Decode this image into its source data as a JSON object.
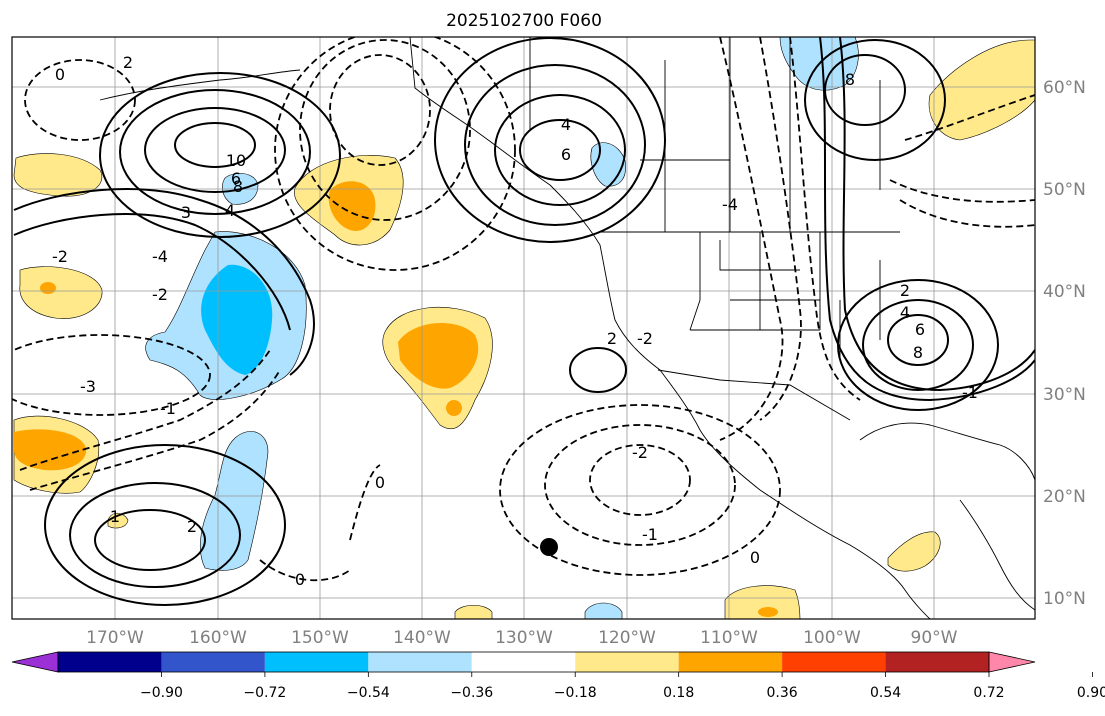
{
  "title": "2025102700 F060",
  "map": {
    "lon_labels": [
      "170°W",
      "160°W",
      "150°W",
      "140°W",
      "130°W",
      "120°W",
      "110°W",
      "100°W",
      "90°W"
    ],
    "lat_labels": [
      "60°N",
      "50°N",
      "40°N",
      "30°N",
      "20°N",
      "10°N"
    ],
    "contour_labels": [
      "0",
      "2",
      "4",
      "6",
      "8",
      "10",
      "3",
      "-2",
      "-3",
      "-1",
      "0",
      "-2",
      "2",
      "4",
      "6",
      "8",
      "1",
      "-1",
      "-2",
      "-4",
      "0",
      "2",
      "4",
      "6",
      "8",
      "-1",
      "0",
      "2",
      "-2",
      "-4"
    ]
  },
  "colorbar": {
    "tick_labels": [
      "−0.90",
      "−0.72",
      "−0.54",
      "−0.36",
      "−0.18",
      "0.18",
      "0.36",
      "0.54",
      "0.72",
      "0.90"
    ],
    "colors": [
      "#9a30d6",
      "#01008c",
      "#3355cc",
      "#00bfff",
      "#aee2ff",
      "#ffffff",
      "#ffe98a",
      "#ffa500",
      "#ff4000",
      "#b22222",
      "#ff88aa"
    ]
  }
}
